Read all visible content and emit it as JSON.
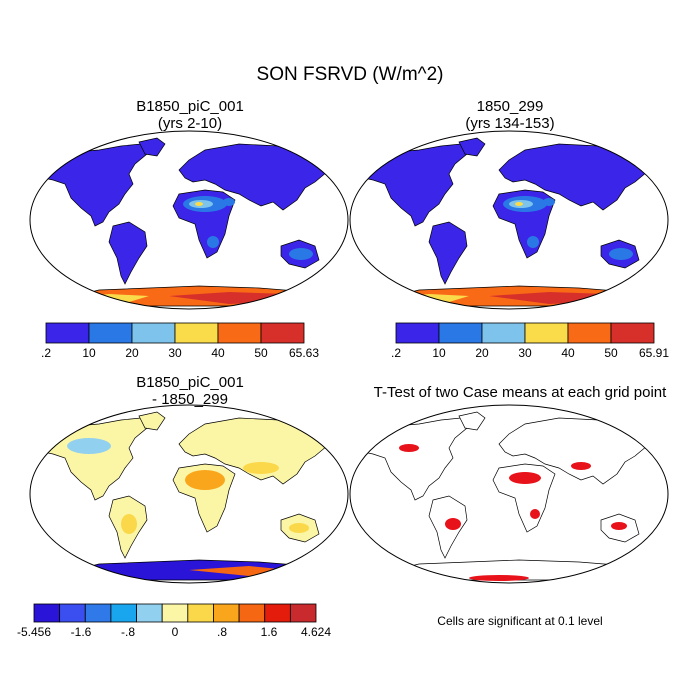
{
  "title": "SON FSRVD (W/m^2)",
  "panels": [
    {
      "id": "case1",
      "title_line1": "B1850_piC_001",
      "title_line2": "(yrs 2-10)",
      "colorbar": {
        "colors": [
          "#3a25e8",
          "#2a78e6",
          "#7ec3ec",
          "#fadc4a",
          "#f96a17",
          "#d7302a"
        ],
        "labels": [
          ".2",
          "10",
          "20",
          "30",
          "40",
          "50",
          "65.63"
        ]
      }
    },
    {
      "id": "case2",
      "title_line1": "1850_299",
      "title_line2": "(yrs 134-153)",
      "colorbar": {
        "colors": [
          "#3a25e8",
          "#2a78e6",
          "#7ec3ec",
          "#fadc4a",
          "#f96a17",
          "#d7302a"
        ],
        "labels": [
          ".2",
          "10",
          "20",
          "30",
          "40",
          "50",
          "65.91"
        ]
      }
    },
    {
      "id": "diff",
      "title_line1": "B1850_piC_001",
      "title_line2": "- 1850_299",
      "colorbar": {
        "colors": [
          "#2a14d8",
          "#3b4ef0",
          "#2f7ae8",
          "#1aa6ee",
          "#92d0f0",
          "#fbf6a6",
          "#fbd84a",
          "#f9a61d",
          "#f56712",
          "#e41c0c",
          "#c82a2e"
        ],
        "labels": [
          "-5.456",
          "-1.6",
          "-.8",
          "0",
          ".8",
          "1.6",
          "4.624"
        ]
      }
    },
    {
      "id": "ttest",
      "title_line1": "T-Test of two Case means at each grid point"
    }
  ],
  "footnote": "Cells are significant at 0.1 level",
  "colors": {
    "land_low": "#3a25e8",
    "land_mid": "#2a78e6",
    "land_light": "#7ec3ec",
    "land_yellow": "#fadc4a",
    "land_orange": "#f96a17",
    "land_red": "#d7302a",
    "signif": "#e8121a"
  }
}
